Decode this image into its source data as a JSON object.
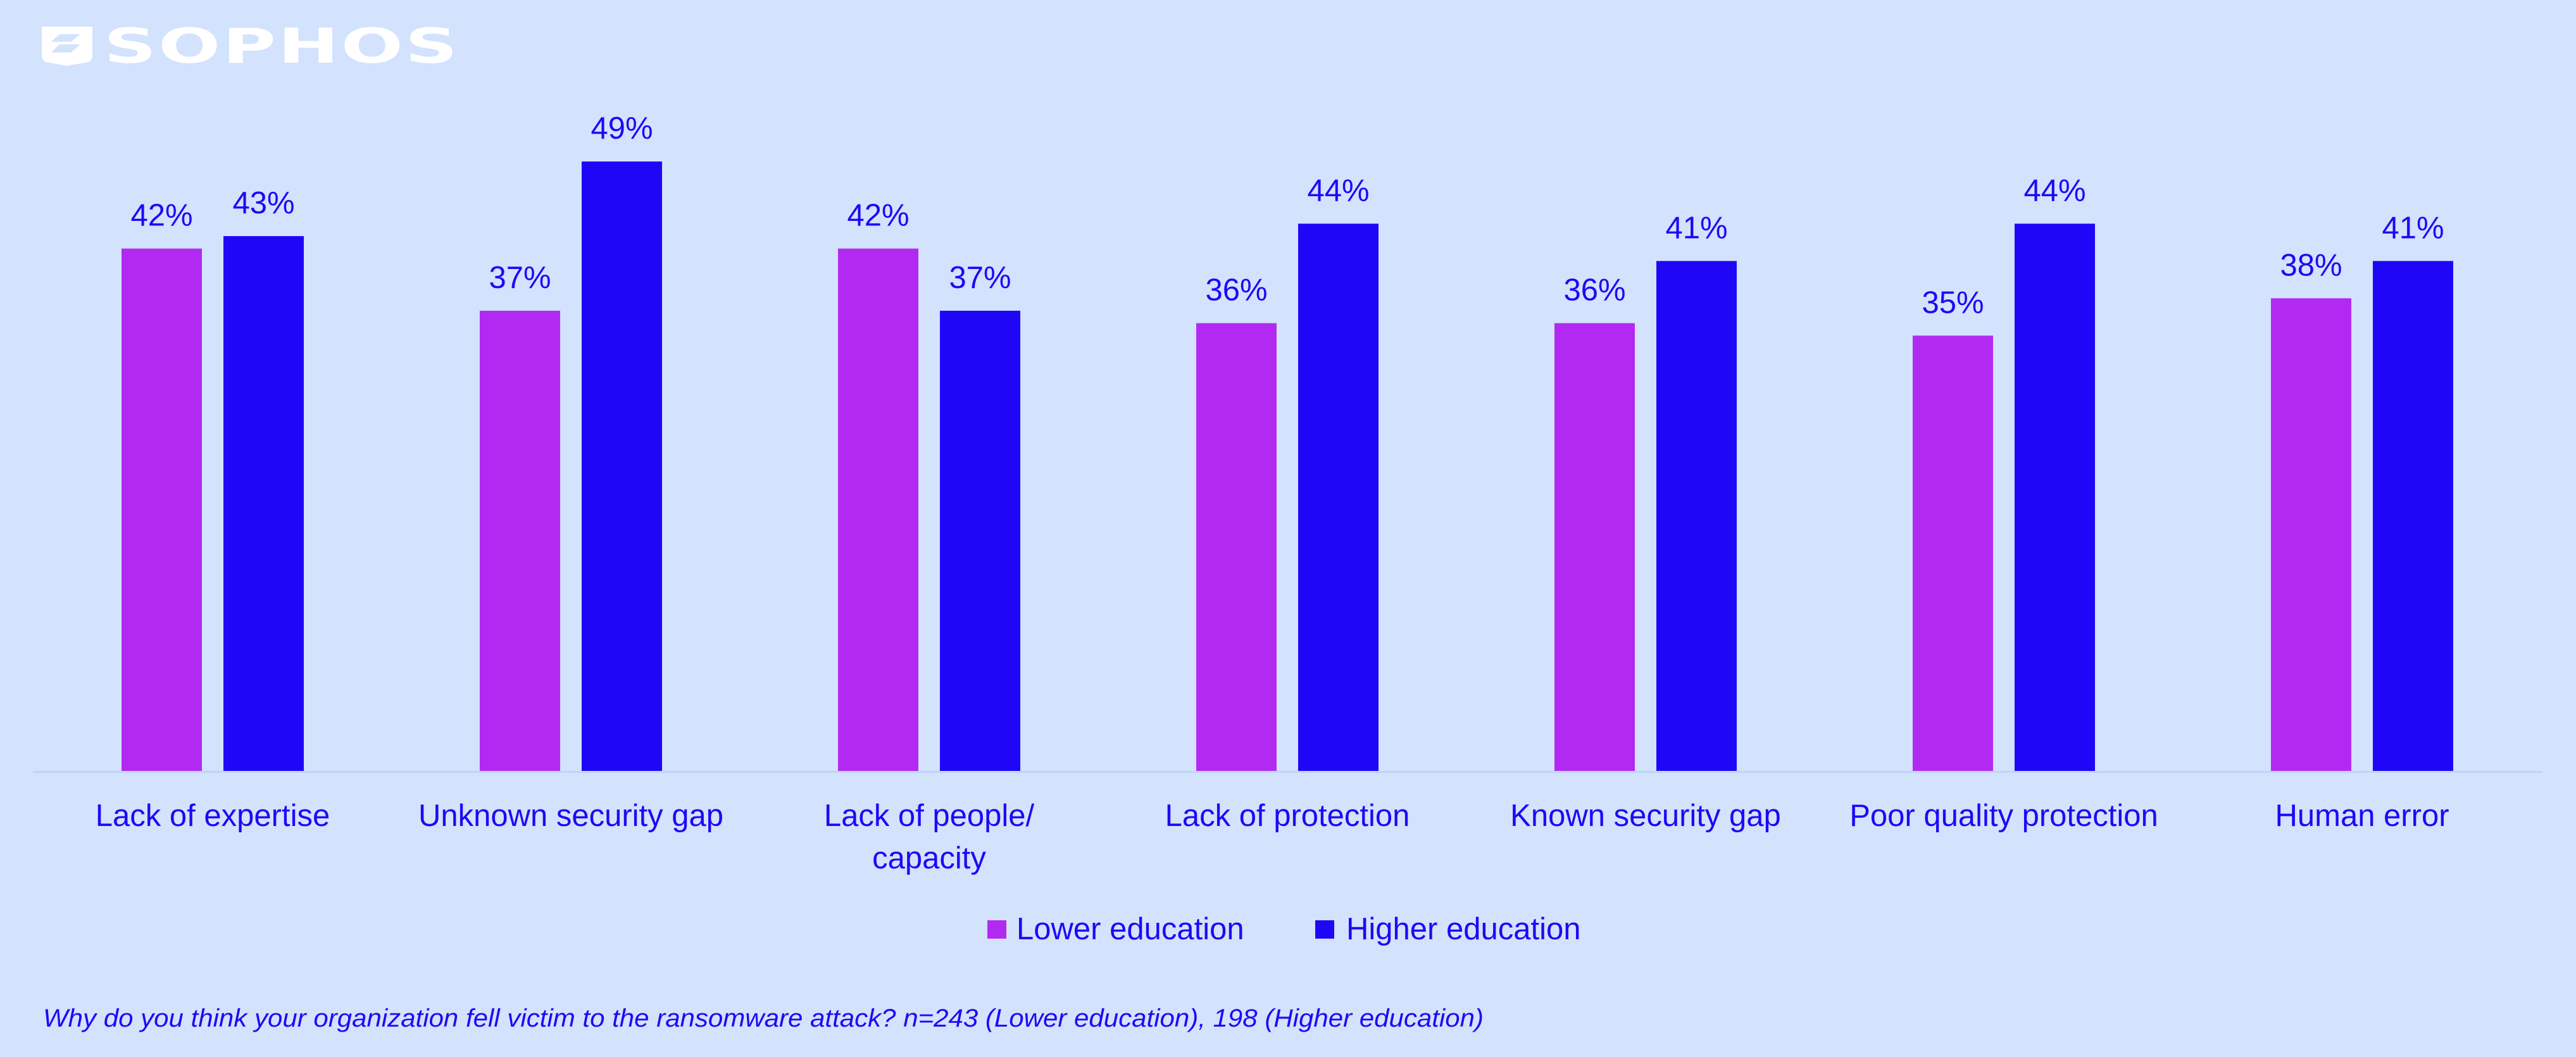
{
  "brand": {
    "name": "SOPHOS",
    "logo_icon": "shield-icon",
    "logo_color": "#FFFFFF"
  },
  "colors": {
    "background": "#D3E2FD",
    "text": "#2006F7",
    "axis": "#BFD4FA",
    "lower_education": "#B22AF2",
    "higher_education": "#2006F7"
  },
  "chart_data": {
    "type": "bar",
    "title": "",
    "xlabel": "",
    "ylabel": "",
    "ylim": [
      0,
      55
    ],
    "grid": false,
    "legend_position": "bottom-center",
    "value_suffix": "%",
    "categories": [
      [
        "Lack of expertise"
      ],
      [
        "Unknown security gap"
      ],
      [
        "Lack of people/",
        "capacity"
      ],
      [
        "Lack of protection"
      ],
      [
        "Known security gap"
      ],
      [
        "Poor quality protection"
      ],
      [
        "Human error"
      ]
    ],
    "series": [
      {
        "name": "Lower education",
        "color": "#B22AF2",
        "values": [
          42,
          37,
          42,
          36,
          36,
          35,
          38
        ],
        "labels": [
          "42%",
          "37%",
          "42%",
          "36%",
          "36%",
          "35%",
          "38%"
        ]
      },
      {
        "name": "Higher education",
        "color": "#2006F7",
        "values": [
          43,
          49,
          37,
          44,
          41,
          44,
          41
        ],
        "labels": [
          "43%",
          "49%",
          "37%",
          "44%",
          "41%",
          "44%",
          "41%"
        ]
      }
    ]
  },
  "legend": {
    "items": [
      {
        "label": "Lower education",
        "color": "#B22AF2"
      },
      {
        "label": "Higher education",
        "color": "#2006F7"
      }
    ]
  },
  "footnote": "Why do you think your organization fell victim to the ransomware attack? n=243 (Lower education), 198 (Higher education)"
}
